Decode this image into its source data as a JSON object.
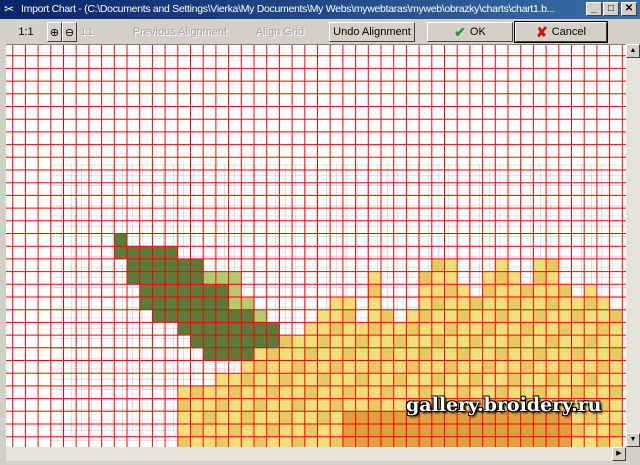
{
  "window": {
    "title": "Import Chart - (C:\\Documents and Settings\\Vierka\\My Documents\\My Webs\\mywebtaras\\myweb\\obrazky\\charts\\chart1.b...",
    "minimize": "_",
    "maximize": "□",
    "close": "✕"
  },
  "toolbar": {
    "zoom_1_1": "1:1",
    "zoom_in_icon": "zoom-in",
    "zoom_out_icon": "zoom-out",
    "fit_label": "1:1",
    "previous_alignment": "Previous Alignment",
    "align_grid": "Align Grid",
    "undo_alignment": "Undo Alignment",
    "ok": "OK",
    "cancel": "Cancel"
  },
  "colors": {
    "grid": "#ff0000",
    "dark_green": "#5e7a3a",
    "light_green": "#b8c870",
    "yellow": "#f2de7a",
    "orange": "#e0a040",
    "ok_check": "#2a9a2a",
    "cancel_x": "#d01010"
  },
  "watermark": "gallery.broidery.ru"
}
